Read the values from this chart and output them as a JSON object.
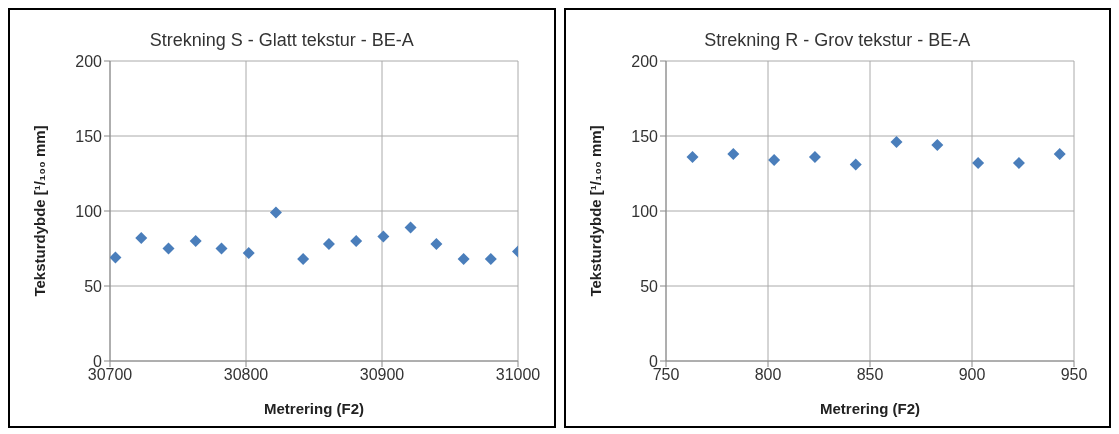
{
  "chart_data": [
    {
      "type": "scatter",
      "title": "Strekning S - Glatt tekstur - BE-A",
      "xlabel": "Metrering (F2)",
      "ylabel": "Teksturdybde [¹/₁₀₀ mm]",
      "x": [
        30704,
        30723,
        30743,
        30763,
        30782,
        30802,
        30822,
        30842,
        30861,
        30881,
        30901,
        30921,
        30940,
        30960,
        30980,
        31000
      ],
      "series": [
        {
          "color": "#4a7ebb",
          "values": [
            69,
            82,
            75,
            80,
            75,
            72,
            99,
            68,
            78,
            80,
            83,
            89,
            78,
            68,
            68,
            73
          ]
        }
      ],
      "xlim": [
        30700,
        31000
      ],
      "xticks": [
        30700,
        30800,
        30900,
        31000
      ],
      "ylim": [
        0,
        200
      ],
      "yticks": [
        0,
        50,
        100,
        150,
        200
      ],
      "grid": true,
      "marker": "diamond"
    },
    {
      "type": "scatter",
      "title": "Strekning R - Grov tekstur - BE-A",
      "xlabel": "Metrering (F2)",
      "ylabel": "Teksturdybde [¹/₁₀₀ mm]",
      "x": [
        763,
        783,
        803,
        823,
        843,
        863,
        883,
        903,
        923,
        943
      ],
      "series": [
        {
          "color": "#4a7ebb",
          "values": [
            136,
            138,
            134,
            136,
            131,
            146,
            144,
            132,
            132,
            138
          ]
        }
      ],
      "xlim": [
        750,
        950
      ],
      "xticks": [
        750,
        800,
        850,
        900,
        950
      ],
      "ylim": [
        0,
        200
      ],
      "yticks": [
        0,
        50,
        100,
        150,
        200
      ],
      "grid": true,
      "marker": "diamond"
    }
  ]
}
